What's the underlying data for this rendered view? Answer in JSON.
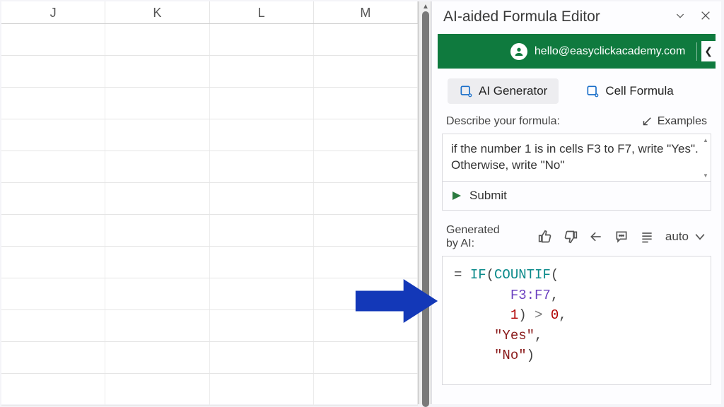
{
  "spreadsheet": {
    "columns": [
      "J",
      "K",
      "L",
      "M"
    ],
    "visible_rows": 12
  },
  "panel": {
    "title": "AI-aided Formula Editor",
    "account_email": "hello@easyclickacademy.com",
    "tabs": {
      "generator": "AI Generator",
      "cell_formula": "Cell Formula"
    },
    "describe_label": "Describe your formula:",
    "examples_label": "Examples",
    "description_text": "if the number 1 is in cells F3 to F7, write \"Yes\". Otherwise, write \"No\"",
    "submit_label": "Submit",
    "generated_label_line1": "Generated",
    "generated_label_line2": "by AI:",
    "auto_label": "auto",
    "formula": {
      "tokens": [
        [
          {
            "t": "= ",
            "c": "op"
          },
          {
            "t": "IF",
            "c": "fn"
          },
          {
            "t": "(",
            "c": "op"
          },
          {
            "t": "COUNTIF",
            "c": "fn"
          },
          {
            "t": "(",
            "c": "op"
          }
        ],
        [
          {
            "t": "       ",
            "c": "op"
          },
          {
            "t": "F3:F7",
            "c": "ref"
          },
          {
            "t": ",",
            "c": "op"
          }
        ],
        [
          {
            "t": "       ",
            "c": "op"
          },
          {
            "t": "1",
            "c": "num"
          },
          {
            "t": ") ",
            "c": "op"
          },
          {
            "t": ">",
            "c": "cmp"
          },
          {
            "t": " ",
            "c": "op"
          },
          {
            "t": "0",
            "c": "num"
          },
          {
            "t": ",",
            "c": "op"
          }
        ],
        [
          {
            "t": "     ",
            "c": "op"
          },
          {
            "t": "\"Yes\"",
            "c": "str"
          },
          {
            "t": ",",
            "c": "op"
          }
        ],
        [
          {
            "t": "     ",
            "c": "op"
          },
          {
            "t": "\"No\"",
            "c": "str"
          },
          {
            "t": ")",
            "c": "op"
          }
        ]
      ]
    }
  },
  "colors": {
    "account_bg": "#0f7a3e",
    "arrow": "#1338b8"
  }
}
